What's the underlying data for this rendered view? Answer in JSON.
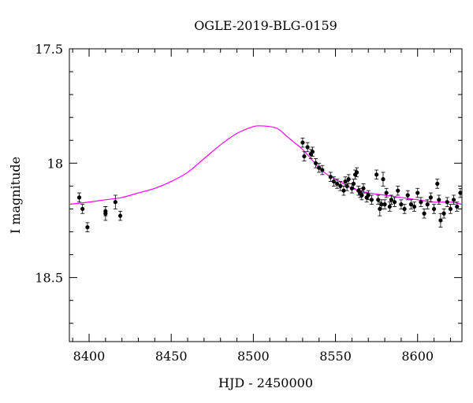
{
  "chart_data": {
    "type": "scatter",
    "title": "OGLE-2019-BLG-0159",
    "xlabel": "HJD - 2450000",
    "ylabel": "I magnitude",
    "xlim": [
      8388,
      8627
    ],
    "ylim": [
      18.78,
      17.5
    ],
    "y_inverted": true,
    "x_ticks": [
      8400,
      8450,
      8500,
      8550,
      8600
    ],
    "y_ticks": [
      17.5,
      18,
      18.5
    ],
    "y_tick_labels": [
      "17.5",
      "18",
      "18.5"
    ],
    "grid": false,
    "legend": "none",
    "model_color": "#ff00ff",
    "point_color": "#000000",
    "model": {
      "x": [
        8388,
        8400,
        8410,
        8420,
        8430,
        8440,
        8450,
        8460,
        8470,
        8480,
        8490,
        8500,
        8505,
        8510,
        8515,
        8520,
        8525,
        8530,
        8535,
        8540,
        8545,
        8550,
        8555,
        8560,
        8565,
        8570,
        8580,
        8590,
        8600,
        8610,
        8620,
        8627
      ],
      "y": [
        18.18,
        18.17,
        18.16,
        18.15,
        18.13,
        18.11,
        18.08,
        18.04,
        17.98,
        17.92,
        17.87,
        17.84,
        17.837,
        17.84,
        17.85,
        17.88,
        17.91,
        17.94,
        17.98,
        18.02,
        18.05,
        18.07,
        18.09,
        18.11,
        18.12,
        18.13,
        18.14,
        18.15,
        18.16,
        18.17,
        18.17,
        18.18
      ]
    },
    "series": [
      {
        "x": [
          8394,
          8396,
          8399,
          8410,
          8410,
          8416,
          8419,
          8530,
          8531,
          8533,
          8535,
          8536,
          8538,
          8540,
          8542,
          8547,
          8549,
          8551,
          8553,
          8555,
          8556,
          8557,
          8558,
          8560,
          8561,
          8562,
          8563,
          8564,
          8565,
          8566,
          8567,
          8569,
          8570,
          8572,
          8575,
          8576,
          8577,
          8578,
          8579,
          8580,
          8581,
          8583,
          8584,
          8586,
          8588,
          8590,
          8592,
          8594,
          8596,
          8598,
          8600,
          8602,
          8604,
          8606,
          8608,
          8610,
          8612,
          8613,
          8614,
          8616,
          8618,
          8620,
          8622,
          8624,
          8626
        ],
        "y": [
          18.15,
          18.2,
          18.28,
          18.22,
          18.21,
          18.17,
          18.23,
          17.91,
          17.97,
          17.93,
          17.96,
          17.95,
          18.0,
          18.02,
          18.03,
          18.06,
          18.08,
          18.09,
          18.1,
          18.12,
          18.08,
          18.1,
          18.07,
          18.11,
          18.09,
          18.05,
          18.04,
          18.12,
          18.13,
          18.14,
          18.11,
          18.15,
          18.14,
          18.16,
          18.05,
          18.16,
          18.2,
          18.18,
          18.07,
          18.18,
          18.13,
          18.19,
          18.16,
          18.17,
          18.12,
          18.18,
          18.2,
          18.14,
          18.18,
          18.19,
          18.13,
          18.17,
          18.22,
          18.18,
          18.15,
          18.2,
          18.09,
          18.16,
          18.25,
          18.22,
          18.17,
          18.2,
          18.16,
          18.19,
          18.13
        ],
        "err": [
          0.02,
          0.02,
          0.02,
          0.03,
          0.02,
          0.03,
          0.02,
          0.02,
          0.02,
          0.02,
          0.02,
          0.02,
          0.02,
          0.02,
          0.02,
          0.02,
          0.02,
          0.02,
          0.02,
          0.02,
          0.02,
          0.02,
          0.02,
          0.02,
          0.02,
          0.02,
          0.02,
          0.02,
          0.02,
          0.02,
          0.02,
          0.02,
          0.02,
          0.02,
          0.02,
          0.02,
          0.03,
          0.02,
          0.03,
          0.02,
          0.02,
          0.02,
          0.02,
          0.02,
          0.02,
          0.02,
          0.02,
          0.02,
          0.02,
          0.02,
          0.02,
          0.02,
          0.02,
          0.02,
          0.02,
          0.02,
          0.02,
          0.02,
          0.03,
          0.02,
          0.02,
          0.02,
          0.02,
          0.02,
          0.02
        ]
      }
    ]
  }
}
